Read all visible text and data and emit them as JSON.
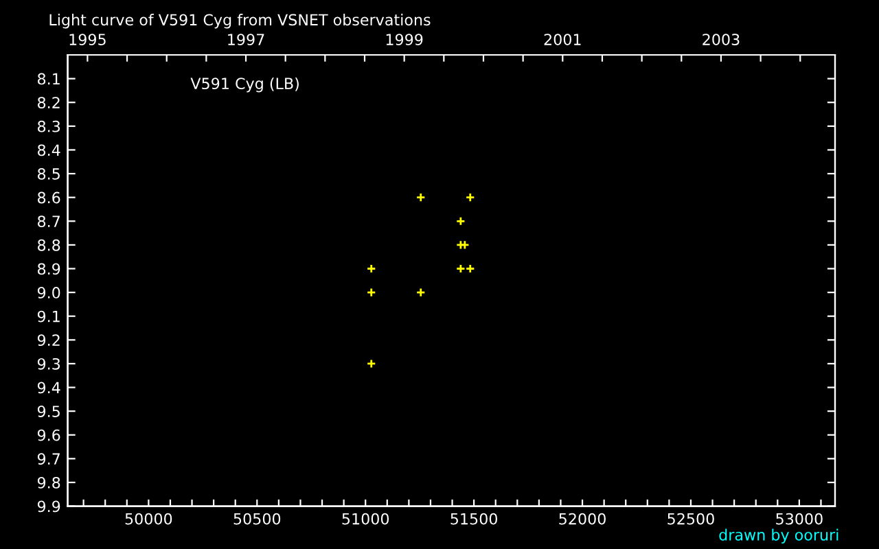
{
  "chart_data": {
    "type": "scatter",
    "title": "Light curve of V591 Cyg from VSNET observations",
    "annotations": [
      "V591 Cyg (LB)",
      "drawn by ooruri"
    ],
    "series": [
      {
        "color": "#ffff00",
        "x": [
          51027,
          51027,
          51027,
          51255,
          51255,
          51439,
          51439,
          51458,
          51439,
          51483,
          51483
        ],
        "values": [
          8.9,
          9.0,
          9.3,
          8.6,
          9.0,
          8.7,
          8.8,
          8.8,
          8.9,
          8.6,
          8.9
        ]
      }
    ],
    "marker": "cross",
    "xlim": [
      49627,
      53165
    ],
    "xticks": [
      {
        "value": 49700,
        "label": null
      },
      {
        "value": 49800,
        "label": null
      },
      {
        "value": 49900,
        "label": null
      },
      50000,
      {
        "value": 50100,
        "label": null
      },
      {
        "value": 50200,
        "label": null
      },
      {
        "value": 50300,
        "label": null
      },
      {
        "value": 50400,
        "label": null
      },
      50500,
      {
        "value": 50600,
        "label": null
      },
      {
        "value": 50700,
        "label": null
      },
      {
        "value": 50800,
        "label": null
      },
      {
        "value": 50900,
        "label": null
      },
      51000,
      {
        "value": 51100,
        "label": null
      },
      {
        "value": 51200,
        "label": null
      },
      {
        "value": 51300,
        "label": null
      },
      {
        "value": 51400,
        "label": null
      },
      51500,
      {
        "value": 51600,
        "label": null
      },
      {
        "value": 51700,
        "label": null
      },
      {
        "value": 51800,
        "label": null
      },
      {
        "value": 51900,
        "label": null
      },
      52000,
      {
        "value": 52100,
        "label": null
      },
      {
        "value": 52200,
        "label": null
      },
      {
        "value": 52300,
        "label": null
      },
      {
        "value": 52400,
        "label": null
      },
      52500,
      {
        "value": 52600,
        "label": null
      },
      {
        "value": 52700,
        "label": null
      },
      {
        "value": 52800,
        "label": null
      },
      {
        "value": 52900,
        "label": null
      },
      53000,
      {
        "value": 53100,
        "label": null
      }
    ],
    "x2lim": [
      1994.75,
      2004.44
    ],
    "x2ticks": [
      1995,
      {
        "value": 1995.5,
        "label": null
      },
      {
        "value": 1996,
        "label": null
      },
      {
        "value": 1996.5,
        "label": null
      },
      1997,
      {
        "value": 1997.5,
        "label": null
      },
      {
        "value": 1998,
        "label": null
      },
      {
        "value": 1998.5,
        "label": null
      },
      1999,
      {
        "value": 1999.5,
        "label": null
      },
      {
        "value": 2000,
        "label": null
      },
      {
        "value": 2000.5,
        "label": null
      },
      2001,
      {
        "value": 2001.5,
        "label": null
      },
      {
        "value": 2002,
        "label": null
      },
      {
        "value": 2002.5,
        "label": null
      },
      2003,
      {
        "value": 2003.5,
        "label": null
      },
      {
        "value": 2004,
        "label": null
      }
    ],
    "ylim": [
      9.9,
      8.0
    ],
    "yticks": [
      8.1,
      8.2,
      8.3,
      8.4,
      8.5,
      8.6,
      8.7,
      8.8,
      8.9,
      {
        "value": 9.0,
        "label": "9.0"
      },
      9.1,
      9.2,
      9.3,
      9.4,
      9.5,
      9.6,
      9.7,
      9.8,
      9.9
    ]
  }
}
